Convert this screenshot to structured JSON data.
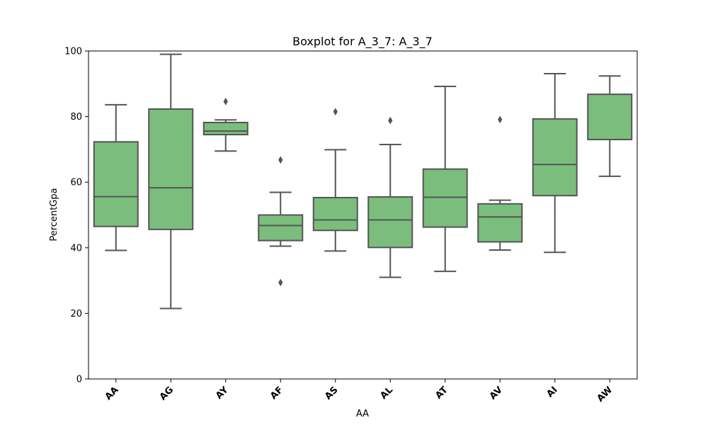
{
  "chart_data": {
    "type": "box",
    "title": "Boxplot for A_3_7: A_3_7",
    "xlabel": "AA",
    "ylabel": "PercentGpa",
    "ylim": [
      0,
      100
    ],
    "yticks": [
      0,
      20,
      40,
      60,
      80,
      100
    ],
    "grid": false,
    "box_color": "#7bbd7d",
    "line_color": "#555555",
    "categories": [
      "AA",
      "AG",
      "AY",
      "AF",
      "AS",
      "AL",
      "AT",
      "AV",
      "AI",
      "AW"
    ],
    "boxes": [
      {
        "label": "AA",
        "whisker_low": 39.2,
        "q1": 46.5,
        "median": 55.6,
        "q3": 72.3,
        "whisker_high": 83.6,
        "outliers": []
      },
      {
        "label": "AG",
        "whisker_low": 21.5,
        "q1": 45.6,
        "median": 58.3,
        "q3": 82.3,
        "whisker_high": 99.0,
        "outliers": []
      },
      {
        "label": "AY",
        "whisker_low": 69.5,
        "q1": 74.5,
        "median": 75.6,
        "q3": 78.2,
        "whisker_high": 79.0,
        "outliers": [
          84.6
        ]
      },
      {
        "label": "AF",
        "whisker_low": 40.5,
        "q1": 42.2,
        "median": 46.8,
        "q3": 50.0,
        "whisker_high": 56.9,
        "outliers": [
          66.8,
          29.4
        ]
      },
      {
        "label": "AS",
        "whisker_low": 39.0,
        "q1": 45.3,
        "median": 48.5,
        "q3": 55.3,
        "whisker_high": 69.9,
        "outliers": [
          81.5
        ]
      },
      {
        "label": "AL",
        "whisker_low": 31.0,
        "q1": 40.1,
        "median": 48.5,
        "q3": 55.5,
        "whisker_high": 71.5,
        "outliers": [
          78.8
        ]
      },
      {
        "label": "AT",
        "whisker_low": 32.8,
        "q1": 46.3,
        "median": 55.4,
        "q3": 64.0,
        "whisker_high": 89.2,
        "outliers": []
      },
      {
        "label": "AV",
        "whisker_low": 39.3,
        "q1": 41.8,
        "median": 49.4,
        "q3": 53.4,
        "whisker_high": 54.5,
        "outliers": [
          79.1
        ]
      },
      {
        "label": "AI",
        "whisker_low": 38.6,
        "q1": 55.9,
        "median": 65.4,
        "q3": 79.3,
        "whisker_high": 93.1,
        "outliers": []
      },
      {
        "label": "AW",
        "whisker_low": 61.8,
        "q1": 73.0,
        "median": 73.0,
        "q3": 86.8,
        "whisker_high": 92.4,
        "outliers": []
      }
    ]
  }
}
